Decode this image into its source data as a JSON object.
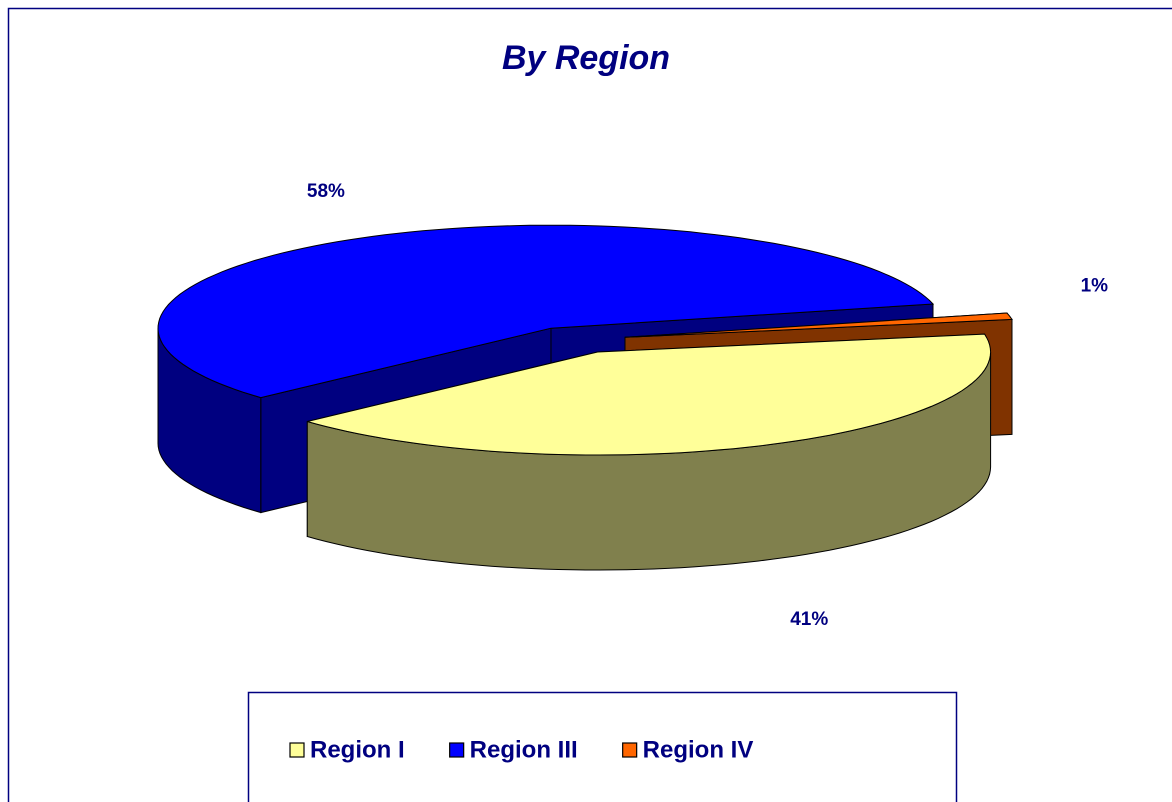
{
  "chart_data": {
    "type": "pie",
    "title": "By Region",
    "categories": [
      "Region I",
      "Region III",
      "Region IV"
    ],
    "values": [
      41,
      58,
      1
    ],
    "value_labels": [
      "41%",
      "58%",
      "1%"
    ],
    "colors": [
      "#FFFF99",
      "#0000FF",
      "#FF6600"
    ],
    "legend": "bottom"
  }
}
